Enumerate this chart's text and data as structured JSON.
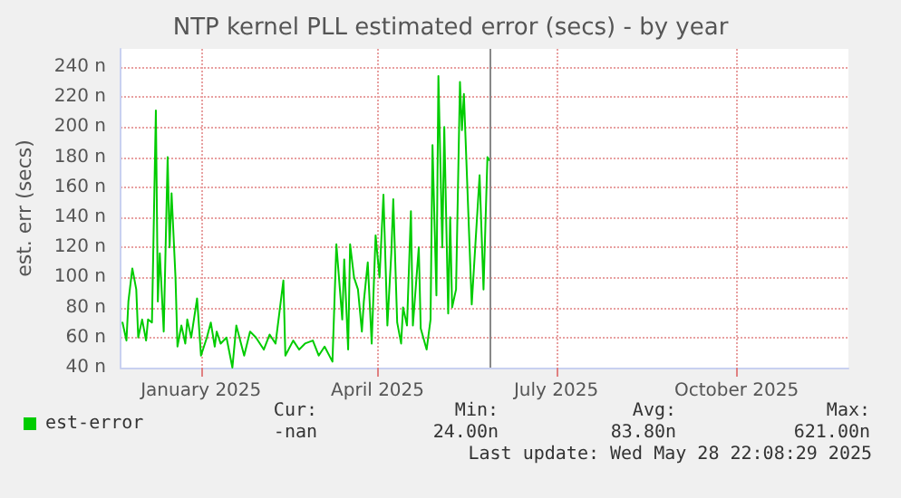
{
  "chart_data": {
    "type": "line",
    "title": "NTP kernel PLL estimated error (secs) - by year",
    "ylabel": "est. err (secs)",
    "x": [
      "2024-11-22",
      "2024-11-24",
      "2024-11-25",
      "2024-11-27",
      "2024-11-29",
      "2024-11-30",
      "2024-12-02",
      "2024-12-04",
      "2024-12-05",
      "2024-12-07",
      "2024-12-09",
      "2024-12-10",
      "2024-12-11",
      "2024-12-13",
      "2024-12-15",
      "2024-12-16",
      "2024-12-17",
      "2024-12-19",
      "2024-12-20",
      "2024-12-22",
      "2024-12-24",
      "2024-12-25",
      "2024-12-27",
      "2024-12-30",
      "2025-01-01",
      "2025-01-04",
      "2025-01-06",
      "2025-01-08",
      "2025-01-09",
      "2025-01-11",
      "2025-01-14",
      "2025-01-17",
      "2025-01-19",
      "2025-01-23",
      "2025-01-26",
      "2025-01-29",
      "2025-02-02",
      "2025-02-05",
      "2025-02-08",
      "2025-02-12",
      "2025-02-13",
      "2025-02-17",
      "2025-02-20",
      "2025-02-23",
      "2025-02-27",
      "2025-03-02",
      "2025-03-05",
      "2025-03-09",
      "2025-03-11",
      "2025-03-14",
      "2025-03-15",
      "2025-03-17",
      "2025-03-18",
      "2025-03-20",
      "2025-03-22",
      "2025-03-24",
      "2025-03-25",
      "2025-03-27",
      "2025-03-29",
      "2025-03-31",
      "2025-04-02",
      "2025-04-04",
      "2025-04-06",
      "2025-04-08",
      "2025-04-09",
      "2025-04-11",
      "2025-04-13",
      "2025-04-14",
      "2025-04-16",
      "2025-04-18",
      "2025-04-19",
      "2025-04-22",
      "2025-04-23",
      "2025-04-26",
      "2025-04-28",
      "2025-04-29",
      "2025-05-01",
      "2025-05-02",
      "2025-05-04",
      "2025-05-05",
      "2025-05-07",
      "2025-05-08",
      "2025-05-09",
      "2025-05-11",
      "2025-05-13",
      "2025-05-14",
      "2025-05-15",
      "2025-05-19",
      "2025-05-23",
      "2025-05-25",
      "2025-05-27",
      "2025-05-28"
    ],
    "series": [
      {
        "name": "est-error",
        "color": "#00cc00",
        "values": [
          70,
          58,
          84,
          106,
          92,
          60,
          72,
          58,
          72,
          70,
          211,
          84,
          116,
          64,
          180,
          120,
          156,
          100,
          54,
          68,
          56,
          72,
          60,
          86,
          48,
          60,
          70,
          54,
          64,
          56,
          60,
          40,
          68,
          48,
          64,
          60,
          52,
          62,
          56,
          98,
          48,
          58,
          52,
          56,
          58,
          48,
          54,
          44,
          122,
          72,
          112,
          52,
          122,
          100,
          92,
          64,
          84,
          110,
          56,
          128,
          100,
          155,
          68,
          116,
          152,
          70,
          56,
          80,
          68,
          144,
          68,
          120,
          66,
          52,
          72,
          188,
          88,
          234,
          120,
          200,
          76,
          140,
          80,
          92,
          230,
          198,
          222,
          82,
          168,
          92,
          180,
          178
        ]
      }
    ],
    "xlim": [
      "2024-11-21",
      "2025-11-27"
    ],
    "xticks": [
      {
        "value": "2025-01-01",
        "label": "January 2025"
      },
      {
        "value": "2025-04-01",
        "label": "April 2025"
      },
      {
        "value": "2025-07-01",
        "label": "July 2025"
      },
      {
        "value": "2025-10-01",
        "label": "October 2025"
      }
    ],
    "ylim": [
      40,
      252
    ],
    "yticks": [
      {
        "value": 40,
        "label": "40 n"
      },
      {
        "value": 60,
        "label": "60 n"
      },
      {
        "value": 80,
        "label": "80 n"
      },
      {
        "value": 100,
        "label": "100 n"
      },
      {
        "value": 120,
        "label": "120 n"
      },
      {
        "value": 140,
        "label": "140 n"
      },
      {
        "value": 160,
        "label": "160 n"
      },
      {
        "value": 180,
        "label": "180 n"
      },
      {
        "value": 200,
        "label": "200 n"
      },
      {
        "value": 220,
        "label": "220 n"
      },
      {
        "value": 240,
        "label": "240 n"
      }
    ],
    "ref_lines": [
      {
        "axis": "x",
        "value": "2025-05-28",
        "color": "#888888"
      }
    ],
    "annotations": [
      "Cur:",
      "Min:",
      "Avg:",
      "Max:",
      "-nan",
      "24.00n",
      "83.80n",
      "621.00n",
      "Last update: Wed May 28 22:08:29 2025"
    ],
    "grid": true,
    "legend": "bottom left",
    "marker": "none",
    "line_style": "solid"
  }
}
